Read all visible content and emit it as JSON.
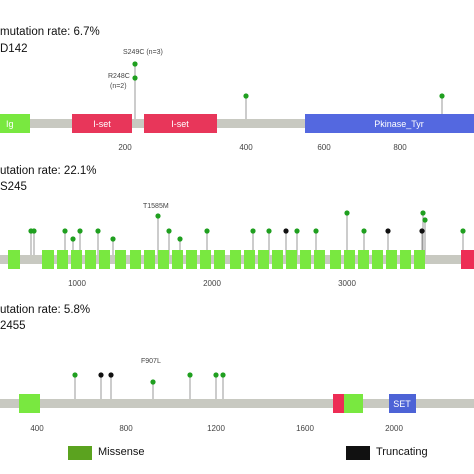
{
  "colors": {
    "backbone": "#c8c9c1",
    "ig": "#79e840",
    "i_set": "#e8365a",
    "pkinase": "#5468e0",
    "green_domain": "#79e840",
    "red_domain": "#ed2d55",
    "set_domain": "#4d63d6",
    "missense": "#1f9f1f",
    "truncating": "#111111",
    "axis_text": "#444444"
  },
  "panels": [
    {
      "mutation_rate": "mutation rate: 6.7%",
      "gene_id": "D142",
      "domains": [
        {
          "label": "Ig"
        },
        {
          "label": "I-set"
        },
        {
          "label": "I-set"
        },
        {
          "label": "Pkinase_Tyr"
        }
      ],
      "ticks": [
        "200",
        "400",
        "600",
        "800"
      ],
      "annotations": [
        "S249C (n=3)",
        "R248C",
        "(n=2)"
      ],
      "mutations": [
        {
          "pos": 248,
          "type": "missense",
          "count": 2,
          "label": "R248C"
        },
        {
          "pos": 249,
          "type": "missense",
          "count": 3,
          "label": "S249C"
        },
        {
          "pos": 397,
          "type": "missense",
          "count": 1
        },
        {
          "pos": 808,
          "type": "missense",
          "count": 1
        }
      ]
    },
    {
      "mutation_rate": "utation rate: 22.1%",
      "gene_id": "S245",
      "ticks": [
        "1000",
        "2000",
        "3000"
      ],
      "annotations": [
        "T1585M"
      ],
      "mutations": [
        {
          "pos": 1585,
          "type": "missense",
          "label": "T1585M"
        },
        {
          "pos": 2550,
          "type": "truncating"
        },
        {
          "pos": 3275,
          "type": "truncating"
        },
        {
          "pos": 3535,
          "type": "truncating"
        }
      ]
    },
    {
      "mutation_rate": "utation rate: 5.8%",
      "gene_id": "2455",
      "domains": [
        {
          "label": ""
        },
        {
          "label": ""
        },
        {
          "label": ""
        },
        {
          "label": "SET"
        }
      ],
      "ticks": [
        "400",
        "800",
        "1200",
        "1600",
        "2000"
      ],
      "annotations": [
        "F907L"
      ],
      "mutations": [
        {
          "pos": 250,
          "type": "missense"
        },
        {
          "pos": 560,
          "type": "missense"
        },
        {
          "pos": 640,
          "type": "truncating"
        },
        {
          "pos": 690,
          "type": "truncating"
        },
        {
          "pos": 907,
          "type": "missense",
          "label": "F907L"
        },
        {
          "pos": 1080,
          "type": "missense"
        },
        {
          "pos": 1200,
          "type": "missense"
        },
        {
          "pos": 1240,
          "type": "missense"
        }
      ]
    }
  ],
  "legend": {
    "missense_label": "Missense",
    "truncating_label": "Truncating"
  }
}
